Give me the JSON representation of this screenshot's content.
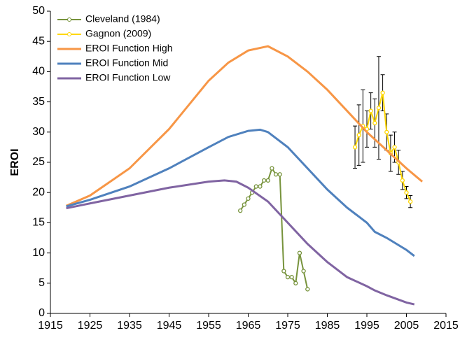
{
  "chart_data": {
    "type": "line",
    "ylabel": "EROI",
    "xlim": [
      1915,
      2015
    ],
    "xticks": [
      1915,
      1925,
      1935,
      1945,
      1955,
      1965,
      1975,
      1985,
      1995,
      2005,
      2015
    ],
    "ylim": [
      0,
      50
    ],
    "yticks": [
      0,
      5,
      10,
      15,
      20,
      25,
      30,
      35,
      40,
      45,
      50
    ],
    "grid": false,
    "legend": "upper left",
    "series": [
      {
        "name": "Cleveland (1984)",
        "color": "#77933c",
        "markers": true,
        "x": [
          1963,
          1964,
          1965,
          1966,
          1967,
          1968,
          1969,
          1970,
          1971,
          1972,
          1973,
          1974,
          1975,
          1976,
          1977,
          1978,
          1979,
          1980
        ],
        "values": [
          17,
          18,
          19,
          20,
          21,
          21,
          22,
          22,
          24,
          23,
          23,
          7,
          6,
          6,
          5,
          10,
          7,
          4
        ]
      },
      {
        "name": "Gagnon (2009)",
        "color": "#ffd700",
        "markers": true,
        "x": [
          1992,
          1993,
          1994,
          1995,
          1996,
          1997,
          1998,
          1999,
          2000,
          2001,
          2002,
          2003,
          2004,
          2005,
          2006
        ],
        "values": [
          27.5,
          29.5,
          31,
          30.5,
          33.5,
          31.5,
          34,
          36.5,
          30,
          26.5,
          27.5,
          25,
          22,
          20,
          18.5
        ],
        "errors": [
          3.5,
          5,
          6,
          3,
          3,
          4,
          8.5,
          3,
          3,
          3,
          2.5,
          2,
          1.5,
          1,
          1
        ]
      },
      {
        "name": "EROI Function High",
        "color": "#f79646",
        "markers": false,
        "x": [
          1919,
          1925,
          1935,
          1945,
          1955,
          1960,
          1965,
          1970,
          1975,
          1980,
          1985,
          1990,
          1995,
          2000,
          2005,
          2009
        ],
        "values": [
          17.8,
          19.5,
          24,
          30.5,
          38.5,
          41.5,
          43.5,
          44.2,
          42.5,
          40,
          37,
          33.5,
          30,
          27,
          24,
          21.8
        ]
      },
      {
        "name": "EROI Function Mid",
        "color": "#4f81bd",
        "markers": false,
        "x": [
          1919,
          1925,
          1935,
          1945,
          1955,
          1960,
          1965,
          1968,
          1970,
          1975,
          1980,
          1985,
          1990,
          1995,
          1997,
          2000,
          2005,
          2007
        ],
        "values": [
          17.7,
          18.8,
          21,
          24,
          27.5,
          29.2,
          30.2,
          30.4,
          30,
          27.5,
          24,
          20.5,
          17.5,
          15,
          13.5,
          12.5,
          10.5,
          9.5
        ]
      },
      {
        "name": "EROI Function Low",
        "color": "#8064a2",
        "markers": false,
        "x": [
          1919,
          1925,
          1935,
          1945,
          1955,
          1959,
          1962,
          1965,
          1970,
          1975,
          1980,
          1985,
          1990,
          1995,
          1997,
          2000,
          2005,
          2007
        ],
        "values": [
          17.4,
          18.2,
          19.5,
          20.8,
          21.8,
          22,
          21.8,
          20.8,
          18.5,
          15,
          11.5,
          8.5,
          6,
          4.5,
          3.8,
          3,
          1.8,
          1.5
        ]
      }
    ]
  }
}
